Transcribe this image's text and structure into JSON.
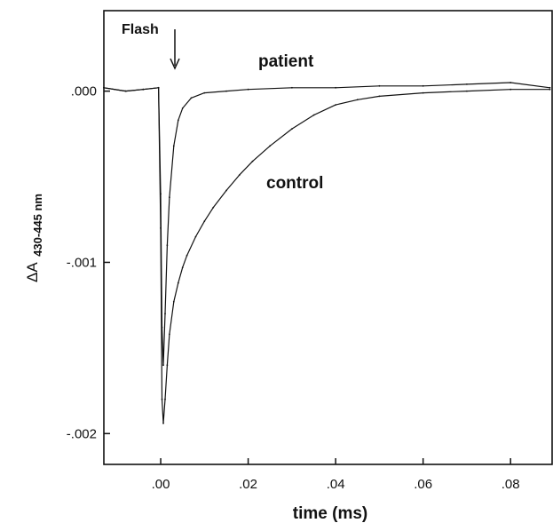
{
  "chart_data": {
    "type": "line",
    "title": "",
    "xlabel": "time (ms)",
    "ylabel_main": "ΔA",
    "ylabel_sub": "430-445 nm",
    "xlim": [
      -0.013,
      0.0895
    ],
    "ylim": [
      -0.00218,
      0.00047
    ],
    "x_ticks": [
      0.0,
      0.02,
      0.04,
      0.06,
      0.08
    ],
    "x_tick_labels": [
      ".00",
      ".02",
      ".04",
      ".06",
      ".08"
    ],
    "y_ticks": [
      0.0,
      -0.001,
      -0.002
    ],
    "y_tick_labels": [
      ".000",
      "-.001",
      "-.002"
    ],
    "grid": false,
    "series": [
      {
        "name": "patient",
        "x": [
          -0.013,
          -0.008,
          -0.004,
          -0.0005,
          0.0,
          0.0003,
          0.0006,
          0.001,
          0.0015,
          0.002,
          0.003,
          0.004,
          0.005,
          0.007,
          0.01,
          0.015,
          0.02,
          0.03,
          0.04,
          0.05,
          0.06,
          0.07,
          0.08,
          0.089
        ],
        "y": [
          2e-05,
          0.0,
          1e-05,
          2e-05,
          -0.0006,
          -0.00138,
          -0.0016,
          -0.0013,
          -0.0009,
          -0.00062,
          -0.00032,
          -0.00017,
          -0.0001,
          -4e-05,
          -1e-05,
          0.0,
          1e-05,
          2e-05,
          2e-05,
          3e-05,
          3e-05,
          4e-05,
          5e-05,
          2e-05
        ]
      },
      {
        "name": "control",
        "x": [
          -0.013,
          -0.008,
          -0.004,
          -0.0005,
          0.0,
          0.0003,
          0.0006,
          0.001,
          0.0015,
          0.002,
          0.003,
          0.004,
          0.005,
          0.006,
          0.008,
          0.01,
          0.012,
          0.015,
          0.018,
          0.021,
          0.025,
          0.03,
          0.035,
          0.04,
          0.045,
          0.05,
          0.06,
          0.07,
          0.08,
          0.089
        ],
        "y": [
          2e-05,
          0.0,
          1e-05,
          2e-05,
          -0.0008,
          -0.0018,
          -0.00194,
          -0.0018,
          -0.0016,
          -0.00142,
          -0.00123,
          -0.00112,
          -0.00103,
          -0.00096,
          -0.00085,
          -0.00076,
          -0.00068,
          -0.00058,
          -0.00049,
          -0.00041,
          -0.00032,
          -0.00022,
          -0.00014,
          -8e-05,
          -5e-05,
          -3e-05,
          -1e-05,
          0.0,
          1e-05,
          1e-05
        ]
      }
    ],
    "annotations": {
      "flash": "Flash",
      "patient": "patient",
      "control": "control"
    }
  }
}
